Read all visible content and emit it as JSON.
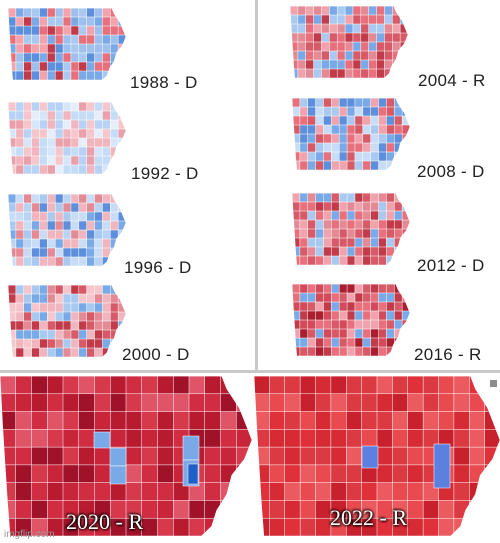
{
  "small_maps": [
    {
      "label": "1988 - D",
      "palette": [
        "#e8707c",
        "#f2a3ab",
        "#a9c9f0",
        "#7aa9e8",
        "#5d8fdc",
        "#c23b4a",
        "#9fc0ee"
      ]
    },
    {
      "label": "1992 - D",
      "palette": [
        "#d6e6fa",
        "#c5dcf7",
        "#f5c6cc",
        "#eaa0aa",
        "#e6eef9",
        "#b7d2f4",
        "#f0b5bd"
      ]
    },
    {
      "label": "1996 - D",
      "palette": [
        "#a9c9f0",
        "#c8dcf6",
        "#7aa9e8",
        "#f0b5bd",
        "#e38a95",
        "#5d8fdc",
        "#b9d3f4"
      ]
    },
    {
      "label": "2000 - D",
      "palette": [
        "#e38a95",
        "#f0b5bd",
        "#c23b4a",
        "#a9c9f0",
        "#7aa9e8",
        "#d65a68",
        "#f5c6cc"
      ]
    },
    {
      "label": "2004 - R",
      "palette": [
        "#d65a68",
        "#e8707c",
        "#f0a3ac",
        "#c23b4a",
        "#a9c9f0",
        "#7aa9e8",
        "#e38a95"
      ]
    },
    {
      "label": "2008 - D",
      "palette": [
        "#7aa9e8",
        "#a9c9f0",
        "#e8707c",
        "#f0a3ac",
        "#5d8fdc",
        "#c8dcf6",
        "#d65a68"
      ]
    },
    {
      "label": "2012 - D",
      "palette": [
        "#d65a68",
        "#e8707c",
        "#f0a3ac",
        "#a9c9f0",
        "#7aa9e8",
        "#c23b4a",
        "#e38a95"
      ]
    },
    {
      "label": "2016 - R",
      "palette": [
        "#c23b4a",
        "#d65a68",
        "#e8707c",
        "#a91f30",
        "#f0a3ac",
        "#7aa9e8",
        "#d34a5a"
      ]
    }
  ],
  "big_maps": [
    {
      "label": "2020 - R",
      "palette": [
        "#c8243a",
        "#d6384c",
        "#b81a30",
        "#e05468",
        "#d02c42",
        "#a0122a"
      ]
    },
    {
      "label": "2022 - R",
      "palette": [
        "#e0303a",
        "#d62a34",
        "#e84a50",
        "#c8202c",
        "#ea5a5e",
        "#dc3a42"
      ]
    }
  ],
  "watermark": "imgflip.com",
  "colors": {
    "dem": "#5d8fdc",
    "dem_strong": "#1f5fc8",
    "rep": "#c8243a",
    "rep_strong": "#8a0c20"
  }
}
